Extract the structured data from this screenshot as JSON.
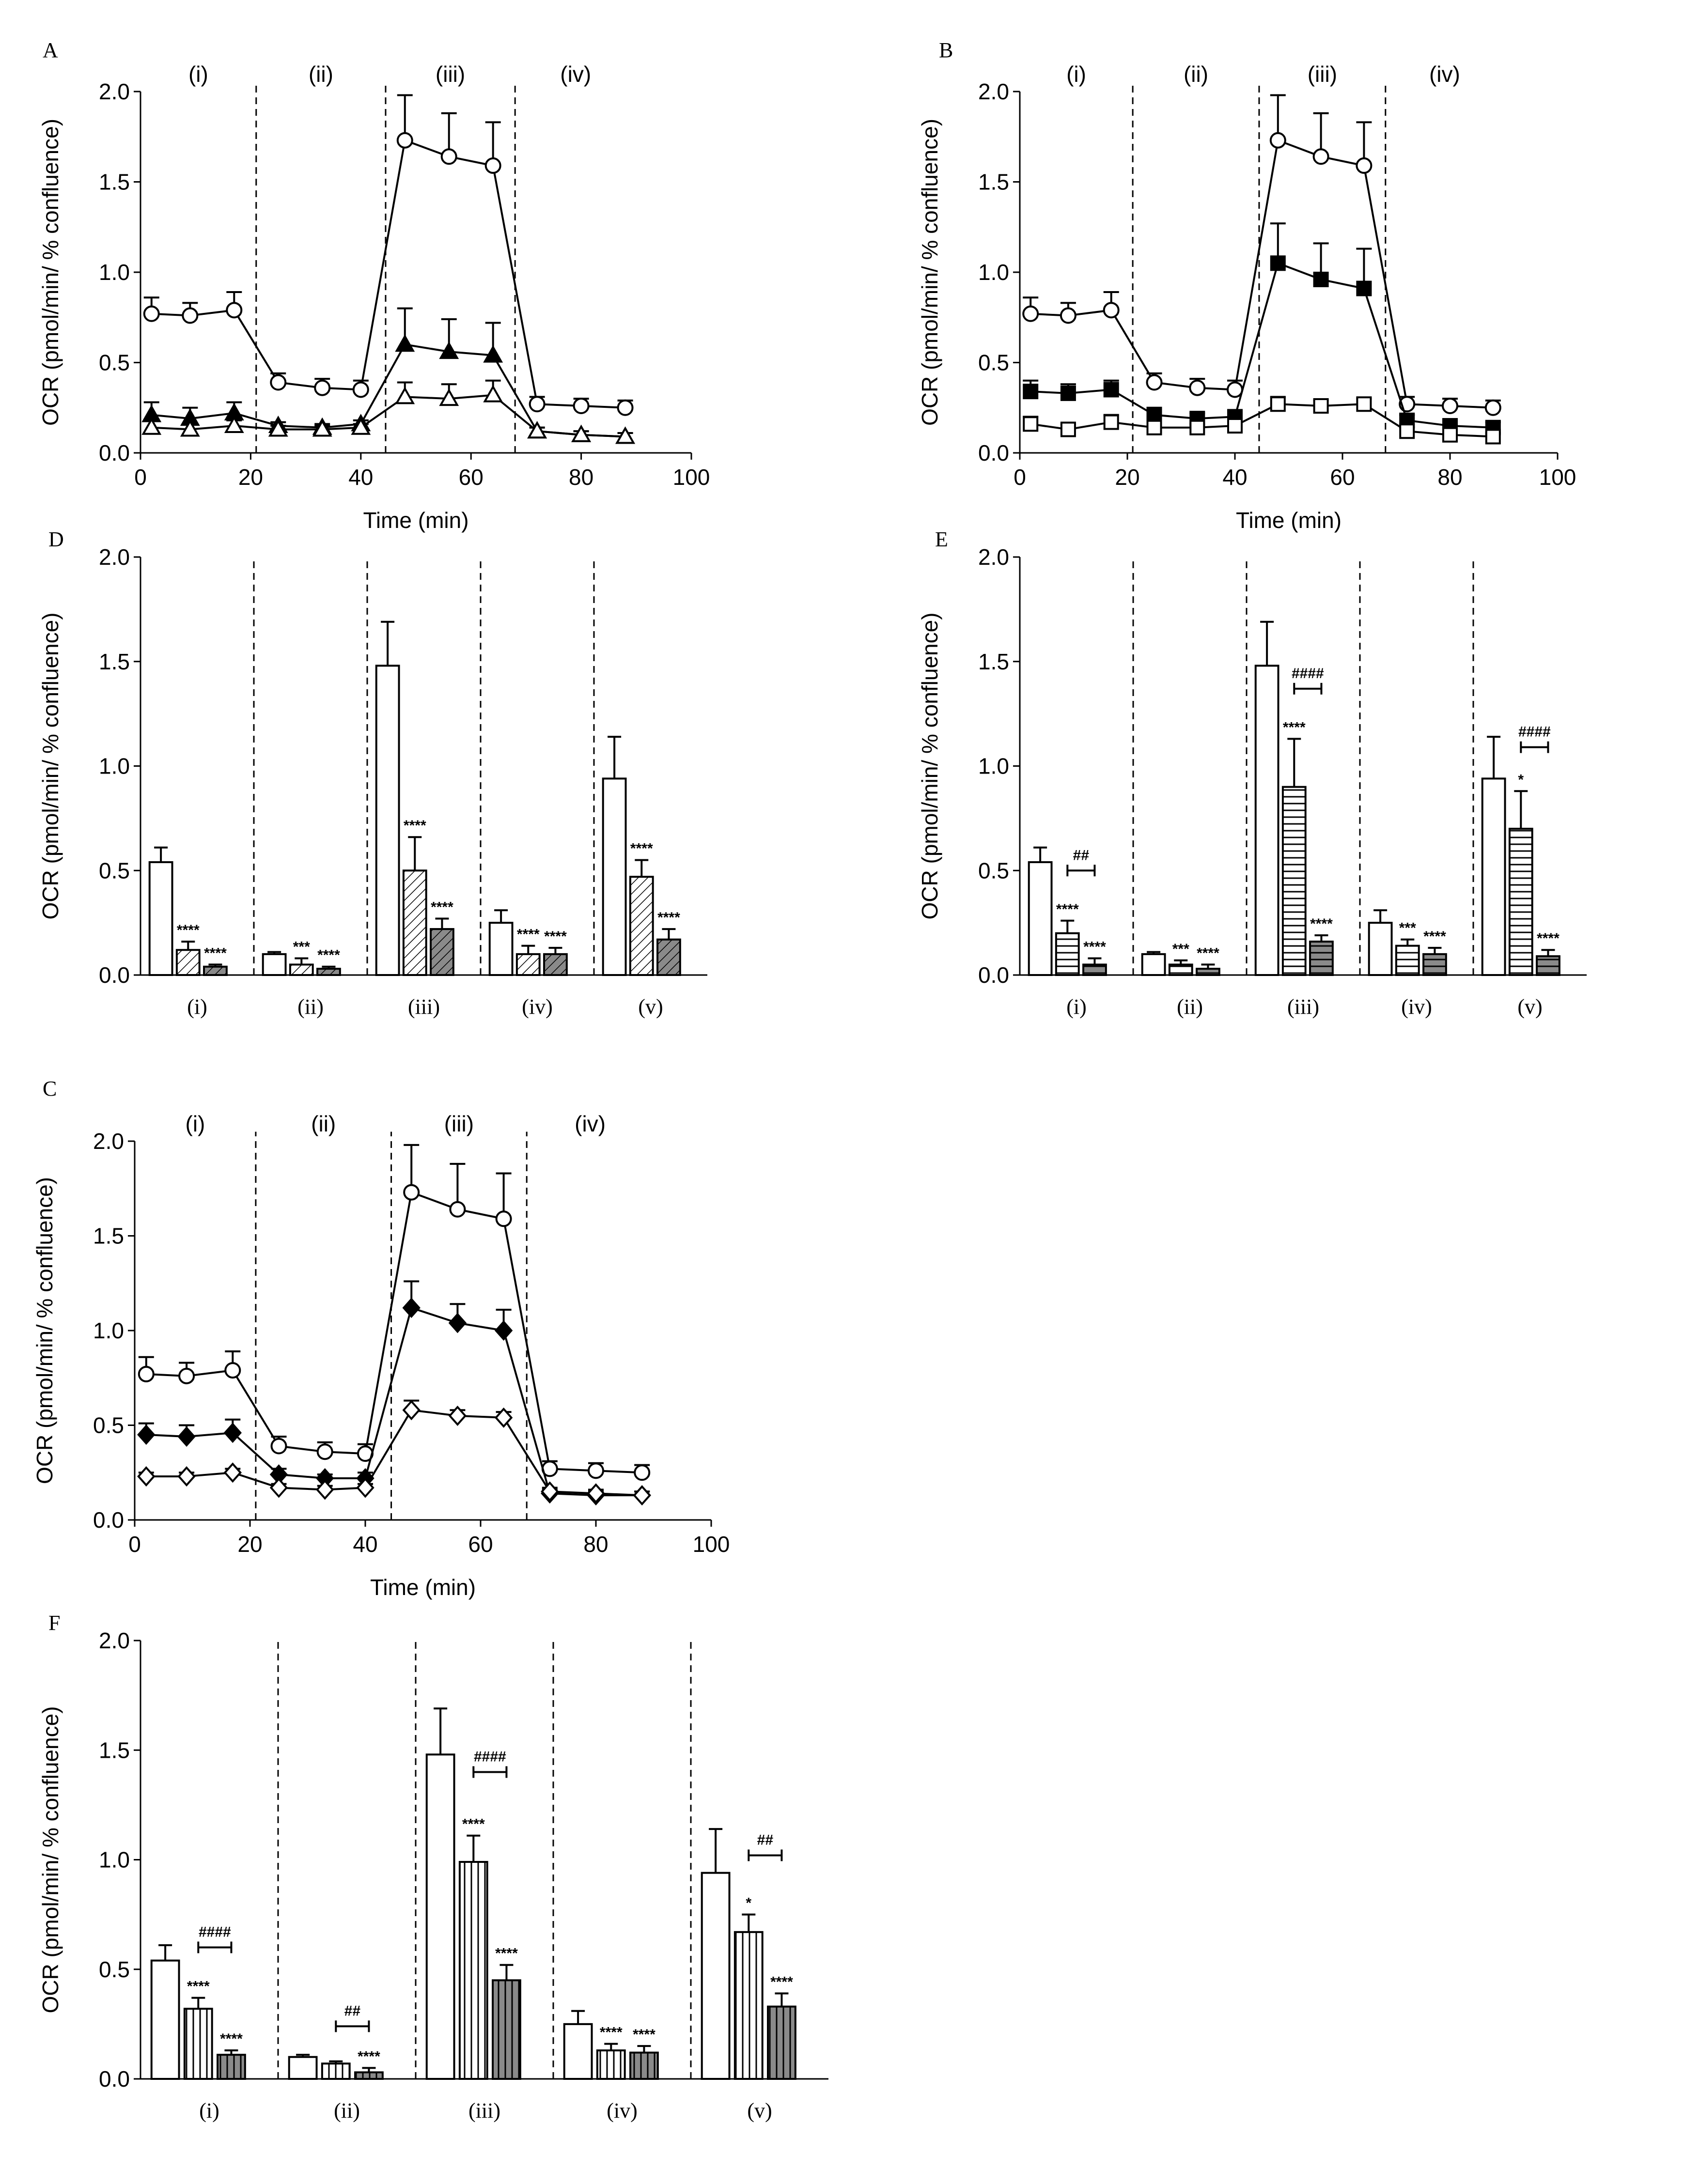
{
  "chart_data": [
    {
      "panel": "A",
      "type": "line",
      "xlabel": "Time (min)",
      "ylabel": "OCR (pmol/min/ % confluence)",
      "xlim": [
        0,
        100
      ],
      "ylim": [
        0,
        2.0
      ],
      "xticks": [
        "0",
        "20",
        "40",
        "60",
        "80",
        "100"
      ],
      "yticks": [
        "0.0",
        "0.5",
        "1.0",
        "1.5",
        "2.0"
      ],
      "regions": [
        "(i)",
        "(ii)",
        "(iii)",
        "(iv)"
      ],
      "dividers": [
        21,
        44.5,
        68
      ],
      "series": [
        {
          "name": "open-circle",
          "marker": "circle",
          "fill": "none",
          "x": [
            2,
            9,
            17,
            25,
            33,
            40,
            48,
            56,
            64,
            72,
            80,
            88
          ],
          "y": [
            0.77,
            0.76,
            0.79,
            0.39,
            0.36,
            0.35,
            1.73,
            1.64,
            1.59,
            0.27,
            0.26,
            0.25
          ],
          "err": [
            0.09,
            0.07,
            0.1,
            0.05,
            0.05,
            0.05,
            0.25,
            0.24,
            0.24,
            0.04,
            0.04,
            0.04
          ]
        },
        {
          "name": "filled-triangle",
          "marker": "triangle",
          "fill": "solid",
          "x": [
            2,
            9,
            17,
            25,
            33,
            40,
            48,
            56,
            64,
            72,
            80,
            88
          ],
          "y": [
            0.21,
            0.19,
            0.22,
            0.15,
            0.14,
            0.16,
            0.6,
            0.56,
            0.54,
            0.12,
            0.1,
            0.09
          ],
          "err": [
            0.07,
            0.06,
            0.06,
            0.02,
            0.02,
            0.02,
            0.2,
            0.18,
            0.18,
            0.02,
            0.02,
            0.02
          ]
        },
        {
          "name": "open-triangle",
          "marker": "triangle",
          "fill": "none",
          "x": [
            2,
            9,
            17,
            25,
            33,
            40,
            48,
            56,
            64,
            72,
            80,
            88
          ],
          "y": [
            0.14,
            0.13,
            0.15,
            0.13,
            0.13,
            0.14,
            0.31,
            0.3,
            0.32,
            0.12,
            0.1,
            0.09
          ],
          "err": [
            0.04,
            0.03,
            0.03,
            0.02,
            0.02,
            0.02,
            0.08,
            0.08,
            0.08,
            0.02,
            0.02,
            0.02
          ]
        }
      ]
    },
    {
      "panel": "B",
      "type": "line",
      "xlabel": "Time (min)",
      "ylabel": "OCR (pmol/min/ % confluence)",
      "xlim": [
        0,
        100
      ],
      "ylim": [
        0,
        2.0
      ],
      "xticks": [
        "0",
        "20",
        "40",
        "60",
        "80",
        "100"
      ],
      "yticks": [
        "0.0",
        "0.5",
        "1.0",
        "1.5",
        "2.0"
      ],
      "regions": [
        "(i)",
        "(ii)",
        "(iii)",
        "(iv)"
      ],
      "dividers": [
        21,
        44.5,
        68
      ],
      "series": [
        {
          "name": "open-circle",
          "marker": "circle",
          "fill": "none",
          "x": [
            2,
            9,
            17,
            25,
            33,
            40,
            48,
            56,
            64,
            72,
            80,
            88
          ],
          "y": [
            0.77,
            0.76,
            0.79,
            0.39,
            0.36,
            0.35,
            1.73,
            1.64,
            1.59,
            0.27,
            0.26,
            0.25
          ],
          "err": [
            0.09,
            0.07,
            0.1,
            0.05,
            0.05,
            0.05,
            0.25,
            0.24,
            0.24,
            0.04,
            0.04,
            0.04
          ]
        },
        {
          "name": "filled-square",
          "marker": "square",
          "fill": "solid",
          "x": [
            2,
            9,
            17,
            25,
            33,
            40,
            48,
            56,
            64,
            72,
            80,
            88
          ],
          "y": [
            0.34,
            0.33,
            0.35,
            0.21,
            0.19,
            0.2,
            1.05,
            0.96,
            0.91,
            0.18,
            0.15,
            0.14
          ],
          "err": [
            0.06,
            0.05,
            0.05,
            0.04,
            0.03,
            0.03,
            0.22,
            0.2,
            0.22,
            0.03,
            0.03,
            0.03
          ]
        },
        {
          "name": "open-square",
          "marker": "square",
          "fill": "none",
          "x": [
            2,
            9,
            17,
            25,
            33,
            40,
            48,
            56,
            64,
            72,
            80,
            88
          ],
          "y": [
            0.16,
            0.13,
            0.17,
            0.14,
            0.14,
            0.15,
            0.27,
            0.26,
            0.27,
            0.12,
            0.1,
            0.09
          ],
          "err": [
            0.04,
            0.03,
            0.04,
            0.02,
            0.02,
            0.02,
            0.04,
            0.03,
            0.03,
            0.02,
            0.02,
            0.02
          ]
        }
      ]
    },
    {
      "panel": "C",
      "type": "line",
      "xlabel": "Time (min)",
      "ylabel": "OCR (pmol/min/ % confluence)",
      "xlim": [
        0,
        100
      ],
      "ylim": [
        0,
        2.0
      ],
      "xticks": [
        "0",
        "20",
        "40",
        "60",
        "80",
        "100"
      ],
      "yticks": [
        "0.0",
        "0.5",
        "1.0",
        "1.5",
        "2.0"
      ],
      "regions": [
        "(i)",
        "(ii)",
        "(iii)",
        "(iv)"
      ],
      "dividers": [
        21,
        44.5,
        68
      ],
      "series": [
        {
          "name": "open-circle",
          "marker": "circle",
          "fill": "none",
          "x": [
            2,
            9,
            17,
            25,
            33,
            40,
            48,
            56,
            64,
            72,
            80,
            88
          ],
          "y": [
            0.77,
            0.76,
            0.79,
            0.39,
            0.36,
            0.35,
            1.73,
            1.64,
            1.59,
            0.27,
            0.26,
            0.25
          ],
          "err": [
            0.09,
            0.07,
            0.1,
            0.05,
            0.05,
            0.05,
            0.25,
            0.24,
            0.24,
            0.04,
            0.04,
            0.04
          ]
        },
        {
          "name": "filled-diamond",
          "marker": "diamond",
          "fill": "solid",
          "x": [
            2,
            9,
            17,
            25,
            33,
            40,
            48,
            56,
            64,
            72,
            80,
            88
          ],
          "y": [
            0.45,
            0.44,
            0.46,
            0.24,
            0.22,
            0.22,
            1.12,
            1.04,
            1.0,
            0.14,
            0.13,
            0.13
          ],
          "err": [
            0.06,
            0.06,
            0.07,
            0.03,
            0.02,
            0.03,
            0.14,
            0.1,
            0.11,
            0.02,
            0.02,
            0.02
          ]
        },
        {
          "name": "open-diamond",
          "marker": "diamond",
          "fill": "none",
          "x": [
            2,
            9,
            17,
            25,
            33,
            40,
            48,
            56,
            64,
            72,
            80,
            88
          ],
          "y": [
            0.23,
            0.23,
            0.25,
            0.17,
            0.16,
            0.17,
            0.58,
            0.55,
            0.54,
            0.15,
            0.14,
            0.13
          ],
          "err": [
            0.02,
            0.02,
            0.02,
            0.02,
            0.02,
            0.02,
            0.05,
            0.03,
            0.03,
            0.02,
            0.02,
            0.02
          ]
        }
      ]
    },
    {
      "panel": "D",
      "type": "bar",
      "ylabel": "OCR (pmol/min/ % confluence)",
      "ylim": [
        0,
        2.0
      ],
      "yticks": [
        "0.0",
        "0.5",
        "1.0",
        "1.5",
        "2.0"
      ],
      "categories": [
        "(i)",
        "(ii)",
        "(iii)",
        "(iv)",
        "(v)"
      ],
      "series": [
        {
          "name": "white",
          "fill": "white",
          "values": [
            0.54,
            0.1,
            1.48,
            0.25,
            0.94
          ],
          "err": [
            0.07,
            0.01,
            0.21,
            0.06,
            0.2
          ],
          "sig": [
            "",
            "",
            "",
            "",
            ""
          ]
        },
        {
          "name": "hatched",
          "fill": "diag",
          "values": [
            0.12,
            0.05,
            0.5,
            0.1,
            0.47
          ],
          "err": [
            0.04,
            0.03,
            0.16,
            0.04,
            0.08
          ],
          "sig": [
            "****",
            "***",
            "****",
            "****",
            "****"
          ]
        },
        {
          "name": "dark-hatched",
          "fill": "diagdark",
          "values": [
            0.04,
            0.03,
            0.22,
            0.1,
            0.17
          ],
          "err": [
            0.01,
            0.01,
            0.05,
            0.03,
            0.05
          ],
          "sig": [
            "****",
            "****",
            "****",
            "****",
            "****"
          ]
        }
      ],
      "brackets": []
    },
    {
      "panel": "E",
      "type": "bar",
      "ylabel": "OCR (pmol/min/ % confluence)",
      "ylim": [
        0,
        2.0
      ],
      "yticks": [
        "0.0",
        "0.5",
        "1.0",
        "1.5",
        "2.0"
      ],
      "categories": [
        "(i)",
        "(ii)",
        "(iii)",
        "(iv)",
        "(v)"
      ],
      "series": [
        {
          "name": "white",
          "fill": "white",
          "values": [
            0.54,
            0.1,
            1.48,
            0.25,
            0.94
          ],
          "err": [
            0.07,
            0.01,
            0.21,
            0.06,
            0.2
          ],
          "sig": [
            "",
            "",
            "",
            "",
            ""
          ]
        },
        {
          "name": "horizontal-striped",
          "fill": "hstripe",
          "values": [
            0.2,
            0.05,
            0.9,
            0.14,
            0.7
          ],
          "err": [
            0.06,
            0.02,
            0.23,
            0.03,
            0.18
          ],
          "sig": [
            "****",
            "***",
            "****",
            "***",
            "*"
          ]
        },
        {
          "name": "grey-striped",
          "fill": "hstripedark",
          "values": [
            0.05,
            0.03,
            0.16,
            0.1,
            0.09
          ],
          "err": [
            0.03,
            0.02,
            0.03,
            0.03,
            0.03
          ],
          "sig": [
            "****",
            "****",
            "****",
            "****",
            "****"
          ]
        }
      ],
      "brackets": [
        {
          "category": 0,
          "y": 0.5,
          "label": "##"
        },
        {
          "category": 2,
          "y": 1.37,
          "label": "####"
        },
        {
          "category": 4,
          "y": 1.09,
          "label": "####"
        }
      ]
    },
    {
      "panel": "F",
      "type": "bar",
      "ylabel": "OCR (pmol/min/ % confluence)",
      "ylim": [
        0,
        2.0
      ],
      "yticks": [
        "0.0",
        "0.5",
        "1.0",
        "1.5",
        "2.0"
      ],
      "categories": [
        "(i)",
        "(ii)",
        "(iii)",
        "(iv)",
        "(v)"
      ],
      "series": [
        {
          "name": "white",
          "fill": "white",
          "values": [
            0.54,
            0.1,
            1.48,
            0.25,
            0.94
          ],
          "err": [
            0.07,
            0.01,
            0.21,
            0.06,
            0.2
          ],
          "sig": [
            "",
            "",
            "",
            "",
            ""
          ]
        },
        {
          "name": "vertical-striped",
          "fill": "vstripe",
          "values": [
            0.32,
            0.07,
            0.99,
            0.13,
            0.67
          ],
          "err": [
            0.05,
            0.01,
            0.12,
            0.03,
            0.08
          ],
          "sig": [
            "****",
            "",
            "****",
            "****",
            "*"
          ]
        },
        {
          "name": "grey-vertical-striped",
          "fill": "vstripedark",
          "values": [
            0.11,
            0.03,
            0.45,
            0.12,
            0.33
          ],
          "err": [
            0.02,
            0.02,
            0.07,
            0.03,
            0.06
          ],
          "sig": [
            "****",
            "****",
            "****",
            "****",
            "****"
          ]
        }
      ],
      "brackets": [
        {
          "category": 0,
          "y": 0.6,
          "label": "####"
        },
        {
          "category": 1,
          "y": 0.24,
          "label": "##"
        },
        {
          "category": 2,
          "y": 1.4,
          "label": "####"
        },
        {
          "category": 4,
          "y": 1.02,
          "label": "##"
        }
      ]
    }
  ]
}
